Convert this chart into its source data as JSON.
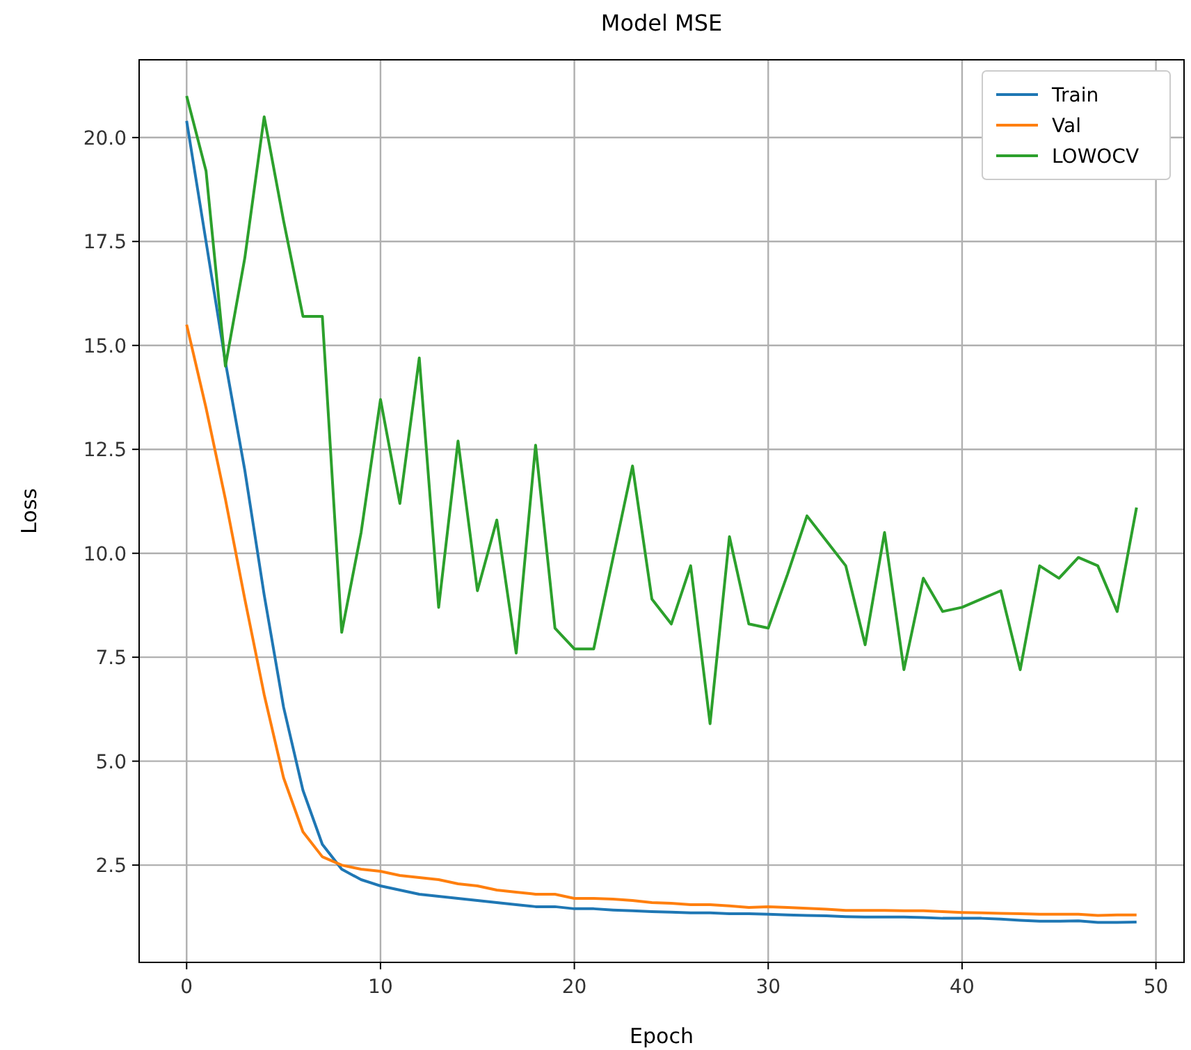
{
  "chart_data": {
    "type": "line",
    "title": "Model MSE",
    "xlabel": "Epoch",
    "ylabel": "Loss",
    "x": [
      0,
      1,
      2,
      3,
      4,
      5,
      6,
      7,
      8,
      9,
      10,
      11,
      12,
      13,
      14,
      15,
      16,
      17,
      18,
      19,
      20,
      21,
      22,
      23,
      24,
      25,
      26,
      27,
      28,
      29,
      30,
      31,
      32,
      33,
      34,
      35,
      36,
      37,
      38,
      39,
      40,
      41,
      42,
      43,
      44,
      45,
      46,
      47,
      48,
      49
    ],
    "series": [
      {
        "name": "Train",
        "color": "#1f77b4",
        "values": [
          20.4,
          17.5,
          14.6,
          12.0,
          9.0,
          6.3,
          4.3,
          3.0,
          2.4,
          2.15,
          2.0,
          1.9,
          1.8,
          1.75,
          1.7,
          1.65,
          1.6,
          1.55,
          1.5,
          1.5,
          1.45,
          1.45,
          1.42,
          1.4,
          1.38,
          1.37,
          1.35,
          1.35,
          1.33,
          1.33,
          1.32,
          1.3,
          1.29,
          1.28,
          1.26,
          1.25,
          1.25,
          1.25,
          1.24,
          1.22,
          1.22,
          1.22,
          1.2,
          1.17,
          1.15,
          1.15,
          1.16,
          1.12,
          1.12,
          1.13
        ]
      },
      {
        "name": "Val",
        "color": "#ff7f0e",
        "values": [
          15.5,
          13.5,
          11.3,
          8.9,
          6.6,
          4.6,
          3.3,
          2.7,
          2.5,
          2.4,
          2.35,
          2.25,
          2.2,
          2.15,
          2.05,
          2.0,
          1.9,
          1.85,
          1.8,
          1.8,
          1.7,
          1.7,
          1.68,
          1.65,
          1.6,
          1.58,
          1.55,
          1.55,
          1.52,
          1.48,
          1.5,
          1.48,
          1.46,
          1.44,
          1.41,
          1.41,
          1.41,
          1.4,
          1.4,
          1.38,
          1.36,
          1.35,
          1.34,
          1.33,
          1.32,
          1.32,
          1.32,
          1.29,
          1.3,
          1.3
        ]
      },
      {
        "name": "LOWOCV",
        "color": "#2ca02c",
        "values": [
          21.0,
          19.2,
          14.5,
          17.1,
          20.5,
          18.0,
          15.7,
          15.7,
          8.1,
          10.5,
          13.7,
          11.2,
          14.7,
          8.7,
          12.7,
          9.1,
          10.8,
          7.6,
          12.6,
          8.2,
          7.7,
          7.7,
          9.9,
          12.1,
          8.9,
          8.3,
          9.7,
          5.9,
          10.4,
          8.3,
          8.2,
          9.5,
          10.9,
          10.3,
          9.7,
          7.8,
          10.5,
          7.2,
          9.4,
          8.6,
          8.7,
          8.9,
          9.1,
          7.2,
          9.7,
          9.4,
          9.9,
          9.7,
          8.6,
          11.1
        ]
      }
    ],
    "xlim": [
      -2.45,
      51.45
    ],
    "xticks": [
      0,
      10,
      20,
      30,
      40,
      50
    ],
    "ylim": [
      0.16,
      21.87
    ],
    "yticks": [
      {
        "value": 2.5,
        "label": "2.5"
      },
      {
        "value": 5,
        "label": "5.0"
      },
      {
        "value": 7.5,
        "label": "7.5"
      },
      {
        "value": 10,
        "label": "10.0"
      },
      {
        "value": 12.5,
        "label": "12.5"
      },
      {
        "value": 15,
        "label": "15.0"
      },
      {
        "value": 17.5,
        "label": "17.5"
      },
      {
        "value": 20,
        "label": "20.0"
      }
    ],
    "grid": true,
    "legend": "top right"
  }
}
